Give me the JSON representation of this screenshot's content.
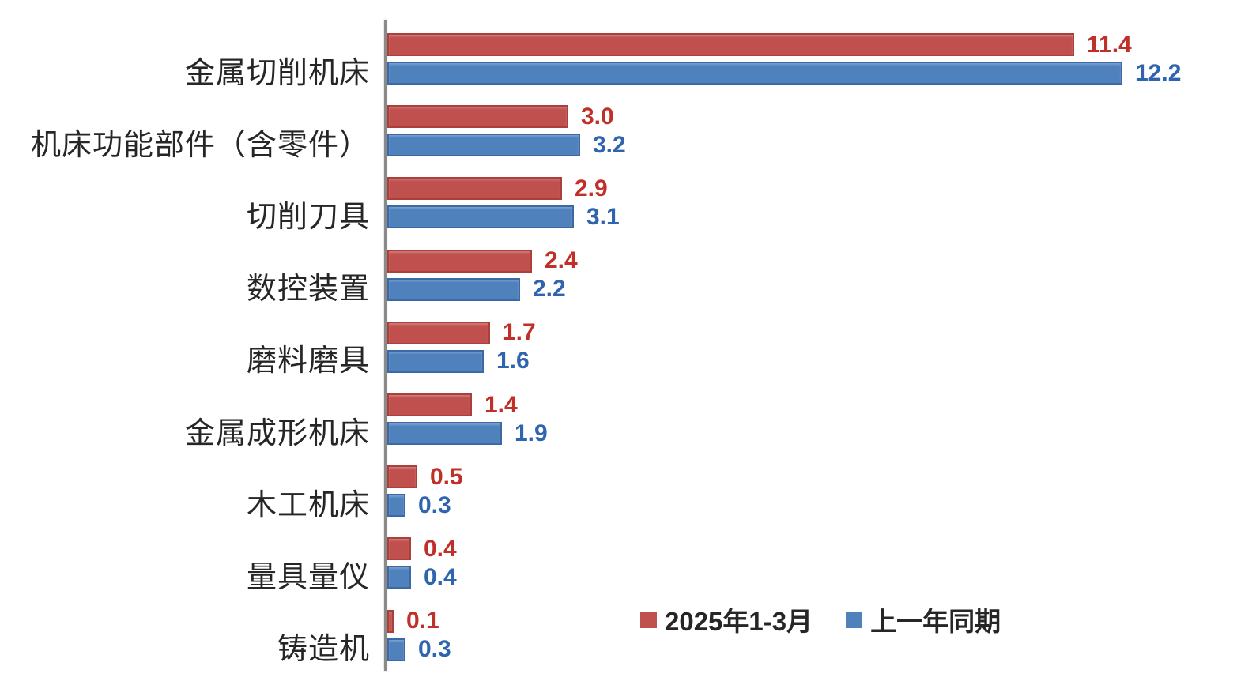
{
  "chart_data": {
    "type": "bar",
    "orientation": "horizontal",
    "title": "",
    "categories": [
      "金属切削机床",
      "机床功能部件（含零件）",
      "切削刀具",
      "数控装置",
      "磨料磨具",
      "金属成形机床",
      "木工机床",
      "量具量仪",
      "铸造机"
    ],
    "series": [
      {
        "name": "2025年1-3月",
        "color": "#c0504d",
        "border_color": "#aa3f3c",
        "label_color": "#c02f28",
        "values": [
          11.4,
          3.0,
          2.9,
          2.4,
          1.7,
          1.4,
          0.5,
          0.4,
          0.1
        ]
      },
      {
        "name": "上一年同期",
        "color": "#4f81bd",
        "border_color": "#3a69a4",
        "label_color": "#2f64ae",
        "values": [
          12.2,
          3.2,
          3.1,
          2.2,
          1.6,
          1.9,
          0.3,
          0.4,
          0.3
        ]
      }
    ],
    "xlim": [
      0,
      12.9
    ],
    "grid": false,
    "value_labels": true,
    "value_label_decimals": 1,
    "legend_position": "inside-bottom-right",
    "axis_color": "#8a8a8a",
    "background": "#ffffff"
  },
  "legend": {
    "items": [
      {
        "label": "2025年1-3月",
        "color": "#c0504d"
      },
      {
        "label": "上一年同期",
        "color": "#4f81bd"
      }
    ]
  }
}
